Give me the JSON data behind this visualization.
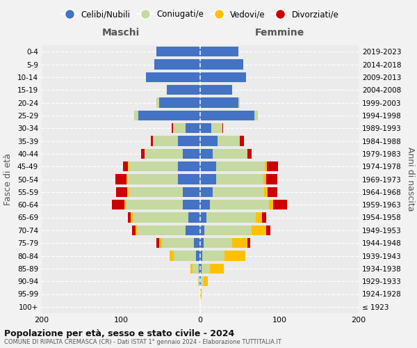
{
  "age_groups": [
    "100+",
    "95-99",
    "90-94",
    "85-89",
    "80-84",
    "75-79",
    "70-74",
    "65-69",
    "60-64",
    "55-59",
    "50-54",
    "45-49",
    "40-44",
    "35-39",
    "30-34",
    "25-29",
    "20-24",
    "15-19",
    "10-14",
    "5-9",
    "0-4"
  ],
  "birth_years": [
    "≤ 1923",
    "1924-1928",
    "1929-1933",
    "1934-1938",
    "1939-1943",
    "1944-1948",
    "1949-1953",
    "1954-1958",
    "1959-1963",
    "1964-1968",
    "1969-1973",
    "1974-1978",
    "1979-1983",
    "1984-1988",
    "1989-1993",
    "1994-1998",
    "1999-2003",
    "2004-2008",
    "2009-2013",
    "2014-2018",
    "2019-2023"
  ],
  "maschi": {
    "celibi": [
      0,
      0,
      1,
      2,
      5,
      8,
      18,
      15,
      22,
      22,
      28,
      28,
      22,
      28,
      18,
      78,
      52,
      42,
      68,
      58,
      55
    ],
    "coniugati": [
      0,
      0,
      2,
      8,
      28,
      40,
      62,
      70,
      72,
      68,
      64,
      62,
      48,
      32,
      16,
      5,
      3,
      0,
      0,
      0,
      0
    ],
    "vedovi": [
      0,
      0,
      0,
      2,
      6,
      4,
      2,
      3,
      2,
      2,
      1,
      1,
      0,
      0,
      0,
      0,
      0,
      0,
      0,
      0,
      0
    ],
    "divorziati": [
      0,
      0,
      0,
      0,
      0,
      3,
      4,
      3,
      15,
      14,
      14,
      6,
      5,
      2,
      2,
      0,
      0,
      0,
      0,
      0,
      0
    ]
  },
  "femmine": {
    "nubili": [
      0,
      0,
      1,
      2,
      3,
      4,
      5,
      8,
      12,
      16,
      20,
      20,
      16,
      22,
      14,
      68,
      48,
      40,
      58,
      54,
      48
    ],
    "coniugate": [
      0,
      0,
      3,
      10,
      28,
      36,
      60,
      62,
      75,
      65,
      60,
      62,
      44,
      28,
      14,
      5,
      2,
      0,
      0,
      0,
      0
    ],
    "vedove": [
      0,
      2,
      6,
      18,
      26,
      20,
      18,
      8,
      5,
      4,
      3,
      2,
      0,
      0,
      0,
      0,
      0,
      0,
      0,
      0,
      0
    ],
    "divorziate": [
      0,
      0,
      0,
      0,
      0,
      3,
      6,
      5,
      18,
      12,
      14,
      14,
      5,
      5,
      1,
      0,
      0,
      0,
      0,
      0,
      0
    ]
  },
  "colors": {
    "celibi": "#4472c4",
    "coniugati": "#c5d9a0",
    "vedovi": "#ffc000",
    "divorziati": "#cc0000"
  },
  "xlim": 200,
  "title": "Popolazione per età, sesso e stato civile - 2024",
  "subtitle": "COMUNE DI RIPALTA CREMASCA (CR) - Dati ISTAT 1° gennaio 2024 - Elaborazione TUTTITALIA.IT",
  "xlabel_left": "Maschi",
  "xlabel_right": "Femmine",
  "ylabel_left": "Fasce di età",
  "ylabel_right": "Anni di nascita",
  "bg_color": "#f2f2f2",
  "plot_bg": "#ebebeb",
  "legend_labels": [
    "Celibi/Nubili",
    "Coniugati/e",
    "Vedovi/e",
    "Divorziati/e"
  ]
}
